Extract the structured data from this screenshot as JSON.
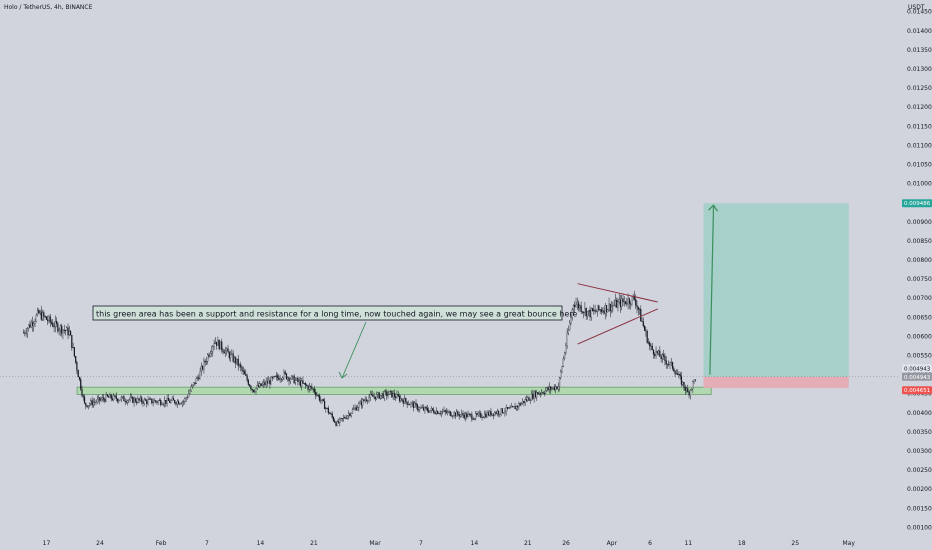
{
  "title": "Holo / TetherUS, 4h, BINANCE",
  "currency": "USDT",
  "annotation": "this green area has been a support and resistance for a long time, now touched again, we may see a great bounce here",
  "colors": {
    "background": "#d1d4dc",
    "candle": "#131722",
    "support_zone": "#b2d8b2",
    "support_zone_border": "#6a9f6a",
    "profit_zone": "#9fcfc6",
    "loss_zone": "#e7a9b0",
    "triangle": "#8a2f3e",
    "arrow": "#3a8f5c",
    "target_tag": "#26a69a",
    "stop_tag": "#ef5350"
  },
  "chart_data": {
    "type": "candlestick",
    "ylim": [
      0.001,
      0.015
    ],
    "y_ticks": [
      "0.001000",
      "0.001500",
      "0.002000",
      "0.002500",
      "0.003000",
      "0.003500",
      "0.004000",
      "0.004500",
      "0.005000",
      "0.005500",
      "0.006000",
      "0.006500",
      "0.007000",
      "0.007500",
      "0.008000",
      "0.008500",
      "0.009000",
      "0.009500",
      "0.010000",
      "0.010500",
      "0.011000",
      "0.011500",
      "0.012000",
      "0.012500",
      "0.013000",
      "0.013500",
      "0.014000",
      "0.014500"
    ],
    "x_ticks": [
      "17",
      "24",
      "Feb",
      "7",
      "14",
      "21",
      "Mar",
      "7",
      "14",
      "21",
      "26",
      "Apr",
      "6",
      "11",
      "18",
      "25",
      "May"
    ],
    "price_path": [
      {
        "t": "Jan 14",
        "p": 0.0061
      },
      {
        "t": "Jan 16",
        "p": 0.0066
      },
      {
        "t": "Jan 18",
        "p": 0.0063
      },
      {
        "t": "Jan 20",
        "p": 0.0061
      },
      {
        "t": "Jan 22",
        "p": 0.0042
      },
      {
        "t": "Jan 25",
        "p": 0.0044
      },
      {
        "t": "Jan 30",
        "p": 0.0043
      },
      {
        "t": "Feb 4",
        "p": 0.0043
      },
      {
        "t": "Feb 6",
        "p": 0.005
      },
      {
        "t": "Feb 8",
        "p": 0.0059
      },
      {
        "t": "Feb 11",
        "p": 0.0053
      },
      {
        "t": "Feb 13",
        "p": 0.0046
      },
      {
        "t": "Feb 17",
        "p": 0.005
      },
      {
        "t": "Feb 21",
        "p": 0.0046
      },
      {
        "t": "Feb 24",
        "p": 0.0037
      },
      {
        "t": "Feb 28",
        "p": 0.0044
      },
      {
        "t": "Mar 3",
        "p": 0.0045
      },
      {
        "t": "Mar 7",
        "p": 0.0041
      },
      {
        "t": "Mar 14",
        "p": 0.0039
      },
      {
        "t": "Mar 19",
        "p": 0.0041
      },
      {
        "t": "Mar 22",
        "p": 0.0045
      },
      {
        "t": "Mar 25",
        "p": 0.0047
      },
      {
        "t": "Mar 27",
        "p": 0.0069
      },
      {
        "t": "Mar 29",
        "p": 0.0066
      },
      {
        "t": "Apr 1",
        "p": 0.0068
      },
      {
        "t": "Apr 4",
        "p": 0.007
      },
      {
        "t": "Apr 6",
        "p": 0.0057
      },
      {
        "t": "Apr 9",
        "p": 0.0052
      },
      {
        "t": "Apr 11",
        "p": 0.0045
      },
      {
        "t": "Apr 12",
        "p": 0.00494
      }
    ],
    "support_zone": {
      "low": 0.00448,
      "high": 0.00467,
      "from": "Jan 21",
      "to": "Apr 14"
    },
    "position": {
      "entry": 0.004943,
      "target": 0.009486,
      "stop": 0.004651,
      "from": "Apr 13",
      "to": "May 2"
    },
    "price_tags": {
      "target": "0.009486",
      "current_high": "0.004943",
      "current": "0.004943",
      "stop": "0.004651"
    }
  }
}
